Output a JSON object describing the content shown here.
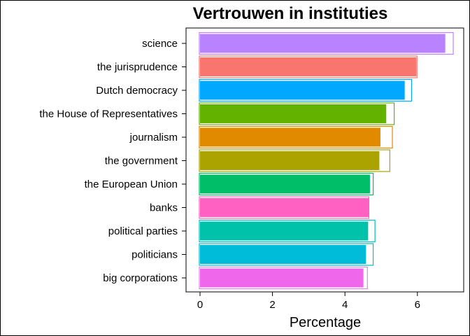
{
  "chart_data": {
    "type": "bar",
    "orientation": "horizontal",
    "title": "Vertrouwen in instituties",
    "xlabel": "Percentage",
    "ylabel": "",
    "xlim": [
      0,
      7.3
    ],
    "xticks": [
      0,
      2,
      4,
      6
    ],
    "grid": false,
    "legend": "none",
    "categories": [
      "science",
      "the jurisprudence",
      "Dutch democracy",
      "the House of Representatives",
      "journalism",
      "the government",
      "the European Union",
      "banks",
      "political parties",
      "politicians",
      "big corporations"
    ],
    "series": [
      {
        "values": [
          6.77,
          5.97,
          5.65,
          5.14,
          4.98,
          4.95,
          4.69,
          4.67,
          4.64,
          4.58,
          4.51
        ]
      },
      {
        "values": [
          6.97,
          5.97,
          5.82,
          5.34,
          5.29,
          5.22,
          4.76,
          4.64,
          4.81,
          4.76,
          4.6
        ]
      }
    ],
    "colors": [
      "#B983FF",
      "#F8766D",
      "#00A9FF",
      "#64B200",
      "#E18A00",
      "#ABA300",
      "#00BE67",
      "#FF61C3",
      "#00C1A9",
      "#00BCD8",
      "#EF67EB"
    ],
    "outline_colors": [
      "#B983FF",
      "#F8766D",
      "#00A9FF",
      "#64B200",
      "#E18A00",
      "#ABA300",
      "#00BE67",
      "#FF61C3",
      "#00BFC4",
      "#00BFC4",
      "#DA8BE0"
    ]
  }
}
